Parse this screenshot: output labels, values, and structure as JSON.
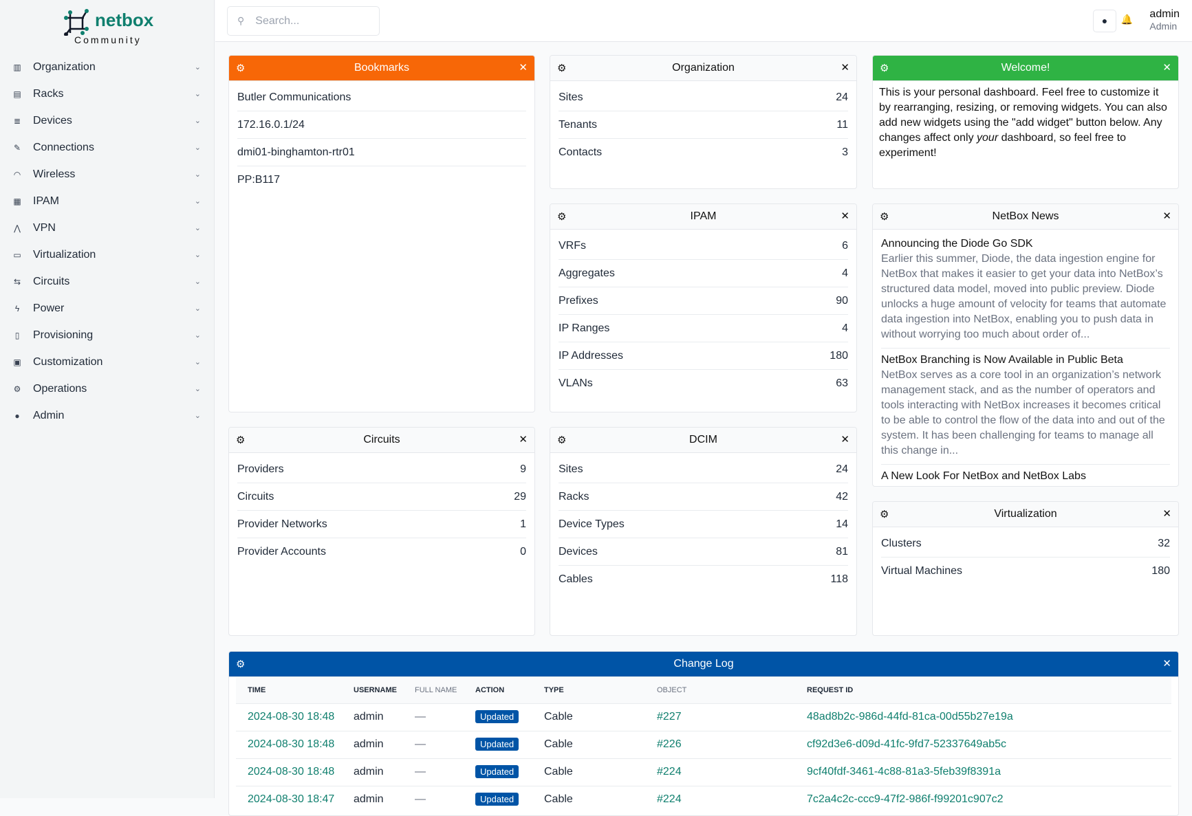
{
  "brand": {
    "name": "netbox",
    "edition": "Community",
    "color": "#0f7f6e"
  },
  "sidebar": {
    "items": [
      {
        "label": "Organization",
        "icon": "building-icon"
      },
      {
        "label": "Racks",
        "icon": "rack-icon"
      },
      {
        "label": "Devices",
        "icon": "server-icon"
      },
      {
        "label": "Connections",
        "icon": "plug-icon"
      },
      {
        "label": "Wireless",
        "icon": "wifi-icon"
      },
      {
        "label": "IPAM",
        "icon": "ip-icon"
      },
      {
        "label": "VPN",
        "icon": "vpn-icon"
      },
      {
        "label": "Virtualization",
        "icon": "monitor-icon"
      },
      {
        "label": "Circuits",
        "icon": "circuit-icon"
      },
      {
        "label": "Power",
        "icon": "flash-icon"
      },
      {
        "label": "Provisioning",
        "icon": "file-icon"
      },
      {
        "label": "Customization",
        "icon": "toolbox-icon"
      },
      {
        "label": "Operations",
        "icon": "cogs-icon"
      },
      {
        "label": "Admin",
        "icon": "users-icon"
      }
    ]
  },
  "topbar": {
    "search_placeholder": "Search...",
    "user": "admin",
    "role": "Admin"
  },
  "widgets": {
    "bookmarks": {
      "title": "Bookmarks",
      "color": "#f76707",
      "items": [
        "Butler Communications",
        "172.16.0.1/24",
        "dmi01-binghamton-rtr01",
        "PP:B117"
      ]
    },
    "organization": {
      "title": "Organization",
      "rows": [
        [
          "Sites",
          "24"
        ],
        [
          "Tenants",
          "11"
        ],
        [
          "Contacts",
          "3"
        ]
      ]
    },
    "welcome": {
      "title": "Welcome!",
      "color": "#2fb344",
      "text_before": "This is your personal dashboard. Feel free to customize it by rearranging, resizing, or removing widgets. You can also add new widgets using the \"add widget\" button below. Any changes affect only ",
      "text_em": "your",
      "text_after": " dashboard, so feel free to experiment!"
    },
    "ipam": {
      "title": "IPAM",
      "rows": [
        [
          "VRFs",
          "6"
        ],
        [
          "Aggregates",
          "4"
        ],
        [
          "Prefixes",
          "90"
        ],
        [
          "IP Ranges",
          "4"
        ],
        [
          "IP Addresses",
          "180"
        ],
        [
          "VLANs",
          "63"
        ]
      ]
    },
    "news": {
      "title": "NetBox News",
      "items": [
        {
          "title": "Announcing the Diode Go SDK",
          "desc": "Earlier this summer, Diode, the data ingestion engine for NetBox that makes it easier to get your data into NetBox’s structured data model, moved into public preview. Diode unlocks a huge amount of velocity for teams that automate data ingestion into NetBox, enabling you to push data in without worrying too much about order of..."
        },
        {
          "title": "NetBox Branching is Now Available in Public Beta",
          "desc": "NetBox serves as a core tool in an organization’s network management stack, and as the number of operators and tools interacting with NetBox increases it becomes critical to be able to control the flow of the data into and out of the system. It has been challenging for teams to manage all this change in..."
        },
        {
          "title": "A New Look For NetBox and NetBox Labs",
          "desc": ""
        }
      ]
    },
    "circuits": {
      "title": "Circuits",
      "rows": [
        [
          "Providers",
          "9"
        ],
        [
          "Circuits",
          "29"
        ],
        [
          "Provider Networks",
          "1"
        ],
        [
          "Provider Accounts",
          "0"
        ]
      ]
    },
    "dcim": {
      "title": "DCIM",
      "rows": [
        [
          "Sites",
          "24"
        ],
        [
          "Racks",
          "42"
        ],
        [
          "Device Types",
          "14"
        ],
        [
          "Devices",
          "81"
        ],
        [
          "Cables",
          "118"
        ]
      ]
    },
    "virtualization": {
      "title": "Virtualization",
      "rows": [
        [
          "Clusters",
          "32"
        ],
        [
          "Virtual Machines",
          "180"
        ]
      ]
    },
    "changelog": {
      "title": "Change Log",
      "color": "#0054a6",
      "columns": [
        "TIME",
        "USERNAME",
        "FULL NAME",
        "ACTION",
        "TYPE",
        "OBJECT",
        "REQUEST ID"
      ],
      "rows": [
        [
          "2024-08-30 18:48",
          "admin",
          "—",
          "Updated",
          "Cable",
          "#227",
          "48ad8b2c-986d-44fd-81ca-00d55b27e19a"
        ],
        [
          "2024-08-30 18:48",
          "admin",
          "—",
          "Updated",
          "Cable",
          "#226",
          "cf92d3e6-d09d-41fc-9fd7-52337649ab5c"
        ],
        [
          "2024-08-30 18:48",
          "admin",
          "—",
          "Updated",
          "Cable",
          "#224",
          "9cf40fdf-3461-4c88-81a3-5feb39f8391a"
        ],
        [
          "2024-08-30 18:47",
          "admin",
          "—",
          "Updated",
          "Cable",
          "#224",
          "7c2a4c2c-ccc9-47f2-986f-f99201c907c2"
        ]
      ]
    }
  }
}
